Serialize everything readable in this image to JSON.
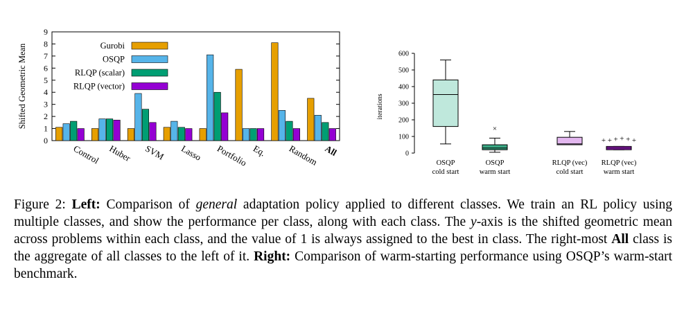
{
  "chart_data": [
    {
      "type": "bar",
      "ylabel": "Shifted Geometric Mean",
      "ylim": [
        0,
        9
      ],
      "yticks": [
        0,
        1,
        2,
        3,
        4,
        5,
        6,
        7,
        8,
        9
      ],
      "categories": [
        "Control",
        "Huber",
        "SVM",
        "Lasso",
        "Portfolio",
        "Eq.",
        "Random",
        "All"
      ],
      "bold_categories": [
        "All"
      ],
      "legend_position": "top-left",
      "series": [
        {
          "name": "Gurobi",
          "color": "#E69F00",
          "values": [
            1.1,
            1.0,
            1.0,
            1.1,
            1.0,
            5.9,
            8.1,
            3.5
          ]
        },
        {
          "name": "OSQP",
          "color": "#56B4E9",
          "values": [
            1.4,
            1.8,
            3.9,
            1.6,
            7.1,
            1.0,
            2.5,
            2.1
          ]
        },
        {
          "name": "RLQP (scalar)",
          "color": "#009E73",
          "values": [
            1.6,
            1.8,
            2.6,
            1.1,
            4.0,
            1.0,
            1.6,
            1.5
          ]
        },
        {
          "name": "RLQP (vector)",
          "color": "#9400D3",
          "values": [
            1.0,
            1.7,
            1.5,
            1.0,
            2.3,
            1.0,
            1.0,
            1.0
          ]
        }
      ]
    },
    {
      "type": "box",
      "ylabel": "iterations",
      "ylim": [
        0,
        600
      ],
      "yticks": [
        0,
        100,
        200,
        300,
        400,
        500,
        600
      ],
      "boxes": [
        {
          "label_line1": "OSQP",
          "label_line2": "cold start",
          "color": "#bfe8dc",
          "whisker_low": 55,
          "q1": 160,
          "median": 352,
          "q3": 440,
          "whisker_high": 560,
          "outliers": []
        },
        {
          "label_line1": "OSQP",
          "label_line2": "warm start",
          "color": "#3aa884",
          "whisker_low": 5,
          "q1": 20,
          "median": 30,
          "q3": 50,
          "whisker_high": 90,
          "outliers": [
            150
          ]
        },
        {
          "label_line1": "RLQP (vec)",
          "label_line2": "cold start",
          "color": "#e3b7ef",
          "whisker_low": 50,
          "q1": 50,
          "median": 55,
          "q3": 95,
          "whisker_high": 130,
          "outliers": []
        },
        {
          "label_line1": "RLQP (vec)",
          "label_line2": "warm start",
          "color": "#9b1ec2",
          "whisker_low": 20,
          "q1": 20,
          "median": 30,
          "q3": 40,
          "whisker_high": 40,
          "outliers": [
            80,
            80,
            85,
            90,
            85,
            80
          ]
        }
      ]
    }
  ],
  "caption": {
    "fig_label": "Figure 2: ",
    "left_label": "Left:",
    "part1": " Comparison of ",
    "general": "general",
    "part2": " adaptation policy applied to different classes. We train an RL policy using multiple classes, and show the performance per class, along with each class. The ",
    "y_var": "y",
    "part3": "-axis is the shifted geometric mean across problems within each class, and the value of 1 is always assigned to the best in class. The right-most ",
    "all_label": "All",
    "part4": " class is the aggregate of all classes to the left of it.",
    "right_label": "Right:",
    "part5": " Comparison of warm-starting performance using OSQP’s warm-start benchmark."
  }
}
